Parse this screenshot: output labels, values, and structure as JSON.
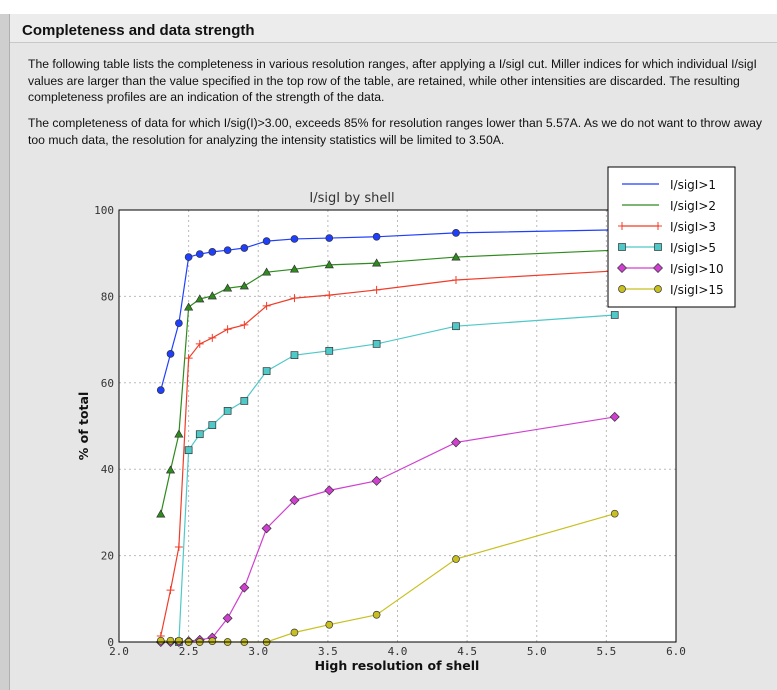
{
  "section": {
    "title": "Completeness and data strength",
    "paragraph1": "The following table lists the completeness in various resolution ranges, after applying a I/sigI cut. Miller indices for which individual I/sigI values are larger than the value specified in the top row of the table, are retained, while other intensities are discarded. The resulting completeness profiles are an indication of the strength of the data.",
    "paragraph2": "The completeness of data for which I/sig(I)>3.00, exceeds  85% for resolution ranges lower than 5.57A. As we do not want to throw away too much data, the resolution for analyzing the intensity statistics will be limited to 3.50A."
  },
  "chart_data": {
    "type": "line",
    "title": "I/sigI by shell",
    "xlabel": "High resolution of shell",
    "ylabel": "% of total",
    "xlim": [
      2.0,
      6.0
    ],
    "ylim": [
      0,
      100
    ],
    "xticks": [
      "2.0",
      "2.5",
      "3.0",
      "3.5",
      "4.0",
      "4.5",
      "5.0",
      "5.5",
      "6.0"
    ],
    "yticks": [
      "0",
      "20",
      "40",
      "60",
      "80",
      "100"
    ],
    "grid": true,
    "legend_position": "top-right",
    "x": [
      2.3,
      2.37,
      2.43,
      2.5,
      2.58,
      2.67,
      2.78,
      2.9,
      3.06,
      3.26,
      3.51,
      3.85,
      4.42,
      5.56
    ],
    "series": [
      {
        "name": "I/sigI>1",
        "color": "#1f3fff",
        "marker": "circle",
        "values": [
          58.3,
          66.7,
          73.8,
          89.1,
          89.8,
          90.3,
          90.7,
          91.2,
          92.8,
          93.3,
          93.5,
          93.8,
          94.7,
          95.4
        ]
      },
      {
        "name": "I/sigI>2",
        "color": "#2e8b1e",
        "marker": "triangle",
        "values": [
          29.6,
          39.8,
          48.1,
          77.5,
          79.4,
          80.1,
          81.9,
          82.4,
          85.6,
          86.3,
          87.3,
          87.7,
          89.1,
          90.7
        ]
      },
      {
        "name": "I/sigI>3",
        "color": "#f03c28",
        "marker": "plus",
        "values": [
          1.4,
          12.0,
          22.0,
          65.7,
          69.0,
          70.4,
          72.4,
          73.4,
          77.8,
          79.6,
          80.3,
          81.5,
          83.8,
          85.9
        ]
      },
      {
        "name": "I/sigI>5",
        "color": "#4fc8c8",
        "marker": "square",
        "values": [
          null,
          null,
          0.0,
          44.4,
          48.1,
          50.2,
          53.5,
          55.8,
          62.7,
          66.4,
          67.4,
          69.0,
          73.1,
          75.7
        ]
      },
      {
        "name": "I/sigI>10",
        "color": "#d040d0",
        "marker": "diamond",
        "values": [
          0.0,
          0.0,
          0.0,
          0.2,
          0.5,
          1.0,
          5.5,
          12.6,
          26.3,
          32.8,
          35.1,
          37.3,
          46.2,
          52.1
        ]
      },
      {
        "name": "I/sigI>15",
        "color": "#c8c020",
        "marker": "circle",
        "values": [
          0.3,
          0.3,
          0.3,
          0.0,
          0.0,
          0.2,
          0.0,
          0.0,
          0.0,
          2.2,
          4.0,
          6.3,
          19.2,
          29.7
        ]
      }
    ]
  }
}
